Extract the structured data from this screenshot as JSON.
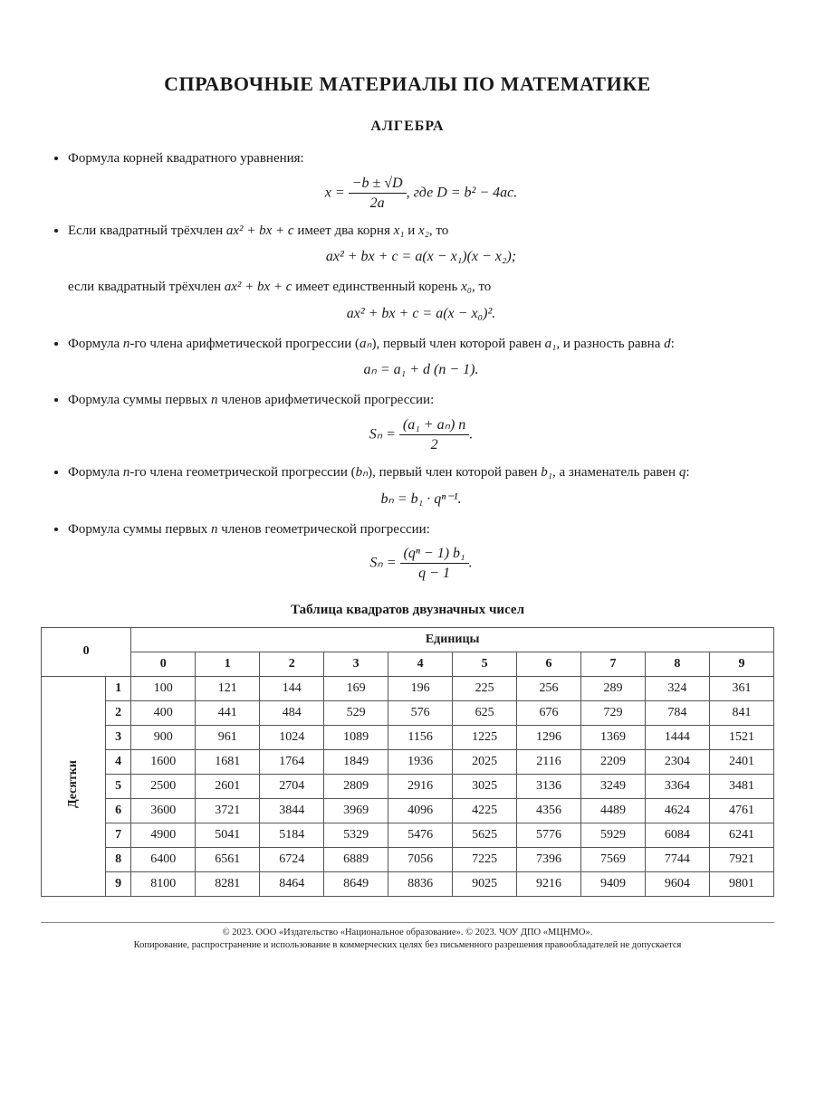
{
  "title": "СПРАВОЧНЫЕ МАТЕРИАЛЫ ПО МАТЕМАТИКЕ",
  "section": "АЛГЕБРА",
  "bullets": {
    "b1_text": "Формула корней квадратного уравнения:",
    "b1_formula_lhs": "x =",
    "b1_num": "−b ± √D",
    "b1_den": "2a",
    "b1_tail": ",  где  D = b² − 4ac.",
    "b2_text_a": "Если квадратный трёхчлен ",
    "b2_trinom": "ax² + bx + c",
    "b2_text_b": " имеет два корня ",
    "b2_x1": "x₁",
    "b2_and": " и ",
    "b2_x2": "x₂",
    "b2_text_c": ", то",
    "b2_formula": "ax² + bx + c = a(x − x₁)(x − x₂);",
    "b2_cont_a": "если квадратный трёхчлен ",
    "b2_cont_b": " имеет единственный корень ",
    "b2_x0": "x₀",
    "b2_cont_c": ", то",
    "b2_formula2": "ax² + bx + c = a(x − x₀)².",
    "b3_text_a": "Формула ",
    "b3_n": "n",
    "b3_text_b": "-го члена арифметической прогрессии (",
    "b3_an": "aₙ",
    "b3_text_c": "), первый член которой равен ",
    "b3_a1": "a₁",
    "b3_text_d": ", и разность равна ",
    "b3_d": "d",
    "b3_text_e": ":",
    "b3_formula": "aₙ = a₁ + d (n − 1).",
    "b4_text_a": "Формула суммы первых ",
    "b4_text_b": " членов арифметической прогрессии:",
    "b4_lhs": "Sₙ =",
    "b4_num": "(a₁ + aₙ) n",
    "b4_den": "2",
    "b4_tail": ".",
    "b5_text_a": "Формула ",
    "b5_text_b": "-го члена геометрической прогрессии (",
    "b5_bn": "bₙ",
    "b5_text_c": "), первый член которой равен ",
    "b5_b1": "b₁",
    "b5_text_d": ", а знаменатель равен ",
    "b5_q": "q",
    "b5_text_e": ":",
    "b5_formula": "bₙ = b₁ · qⁿ⁻¹.",
    "b6_text_a": "Формула суммы первых ",
    "b6_text_b": " членов геометрической прогрессии:",
    "b6_lhs": "Sₙ =",
    "b6_num": "(qⁿ − 1) b₁",
    "b6_den": "q − 1",
    "b6_tail": "."
  },
  "table": {
    "title": "Таблица квадратов двузначных чисел",
    "corner": "0",
    "col_header": "Единицы",
    "row_header": "Десятки",
    "cols": [
      "0",
      "1",
      "2",
      "3",
      "4",
      "5",
      "6",
      "7",
      "8",
      "9"
    ],
    "row_labels": [
      "1",
      "2",
      "3",
      "4",
      "5",
      "6",
      "7",
      "8",
      "9"
    ],
    "rows": [
      [
        "100",
        "121",
        "144",
        "169",
        "196",
        "225",
        "256",
        "289",
        "324",
        "361"
      ],
      [
        "400",
        "441",
        "484",
        "529",
        "576",
        "625",
        "676",
        "729",
        "784",
        "841"
      ],
      [
        "900",
        "961",
        "1024",
        "1089",
        "1156",
        "1225",
        "1296",
        "1369",
        "1444",
        "1521"
      ],
      [
        "1600",
        "1681",
        "1764",
        "1849",
        "1936",
        "2025",
        "2116",
        "2209",
        "2304",
        "2401"
      ],
      [
        "2500",
        "2601",
        "2704",
        "2809",
        "2916",
        "3025",
        "3136",
        "3249",
        "3364",
        "3481"
      ],
      [
        "3600",
        "3721",
        "3844",
        "3969",
        "4096",
        "4225",
        "4356",
        "4489",
        "4624",
        "4761"
      ],
      [
        "4900",
        "5041",
        "5184",
        "5329",
        "5476",
        "5625",
        "5776",
        "5929",
        "6084",
        "6241"
      ],
      [
        "6400",
        "6561",
        "6724",
        "6889",
        "7056",
        "7225",
        "7396",
        "7569",
        "7744",
        "7921"
      ],
      [
        "8100",
        "8281",
        "8464",
        "8649",
        "8836",
        "9025",
        "9216",
        "9409",
        "9604",
        "9801"
      ]
    ]
  },
  "footer": {
    "line1": "© 2023. ООО «Издательство «Национальное образование». © 2023. ЧОУ ДПО «МЦНМО».",
    "line2": "Копирование, распространение и использование в коммерческих целях без письменного разрешения правообладателей не допускается"
  }
}
